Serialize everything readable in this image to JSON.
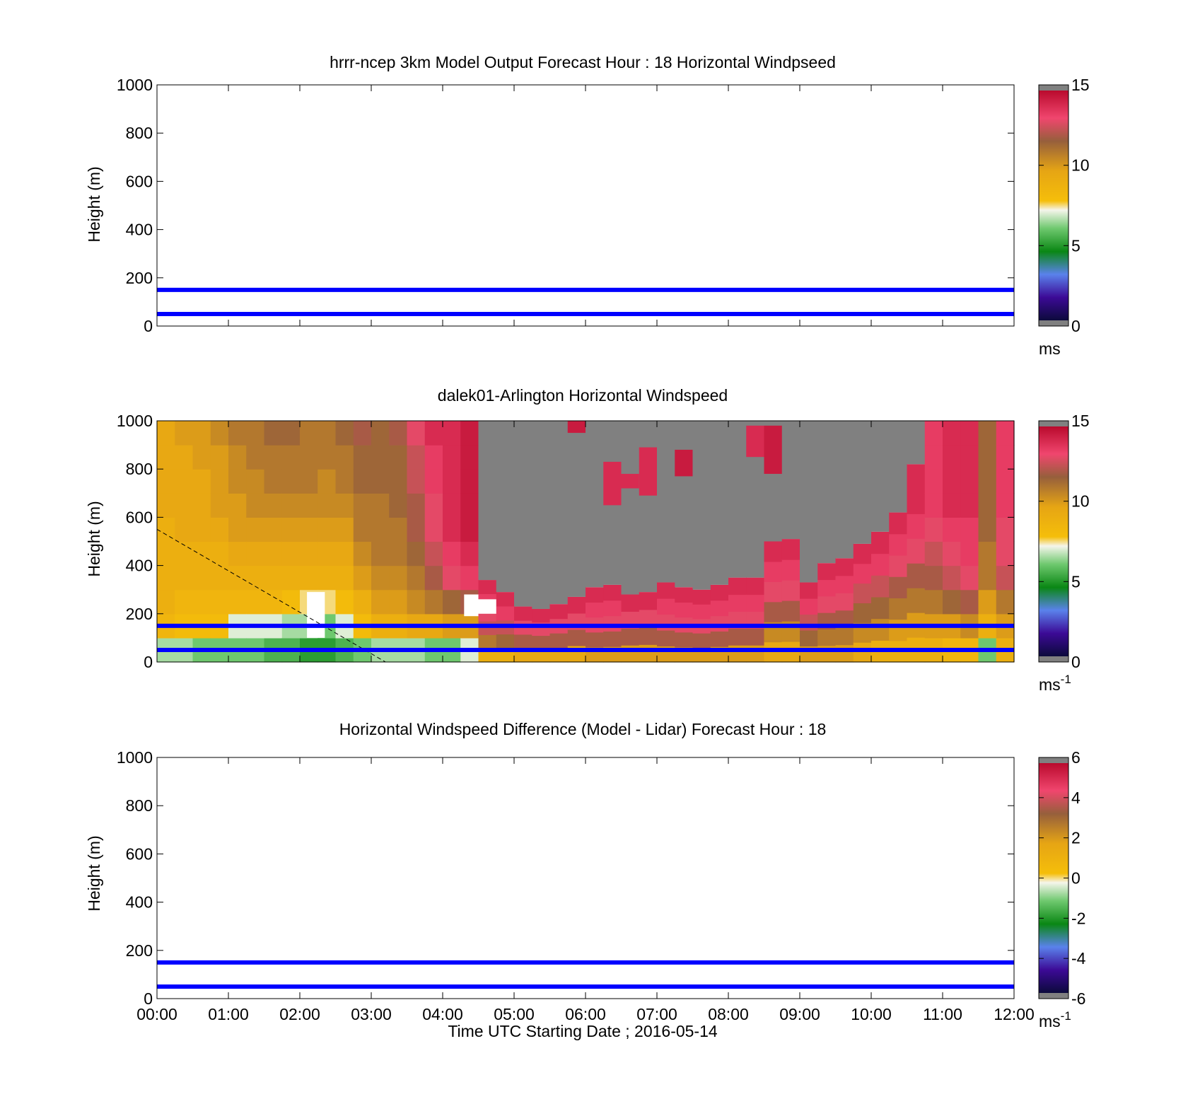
{
  "figure": {
    "xlabel": "Time UTC  Starting Date ; 2016-05-14"
  },
  "chart_data": [
    {
      "type": "heatmap",
      "title": "hrrr-ncep 3km Model Output   Forecast Hour : 18 Horizontal Windpseed",
      "ylabel": "Height (m)",
      "ylim": [
        0,
        1000
      ],
      "yticks": [
        "0",
        "200",
        "400",
        "600",
        "800",
        "1000"
      ],
      "xlim_hours": [
        0,
        12
      ],
      "xticks": [
        "00:00",
        "01:00",
        "02:00",
        "03:00",
        "04:00",
        "05:00",
        "06:00",
        "07:00",
        "08:00",
        "09:00",
        "10:00",
        "11:00",
        "12:00"
      ],
      "show_xticklabels": false,
      "colorbar": {
        "min": 0,
        "max": 15,
        "ticks": [
          "0",
          "5",
          "10",
          "15"
        ],
        "unit": "ms",
        "unit_sup": ""
      },
      "hlines_m": [
        50,
        150
      ],
      "hline_color": "#0000ff",
      "data": "empty"
    },
    {
      "type": "heatmap",
      "title": "dalek01-Arlington  Horizontal Windspeed",
      "ylabel": "Height (m)",
      "ylim": [
        0,
        1000
      ],
      "yticks": [
        "0",
        "200",
        "400",
        "600",
        "800",
        "1000"
      ],
      "xlim_hours": [
        0,
        12
      ],
      "xticks": [
        "00:00",
        "01:00",
        "02:00",
        "03:00",
        "04:00",
        "05:00",
        "06:00",
        "07:00",
        "08:00",
        "09:00",
        "10:00",
        "11:00",
        "12:00"
      ],
      "show_xticklabels": false,
      "colorbar": {
        "min": 0,
        "max": 15,
        "ticks": [
          "0",
          "5",
          "10",
          "15"
        ],
        "unit": "ms",
        "unit_sup": "-1"
      },
      "hlines_m": [
        50,
        150
      ],
      "hline_color": "#0000ff",
      "missing_color": "#808080",
      "dashed_line": {
        "from": [
          0,
          550
        ],
        "to": [
          3.2,
          0
        ]
      },
      "columns": [
        {
          "t": 0.0,
          "top_m": 1000,
          "speeds": [
            6.5,
            8.5,
            9,
            9,
            9,
            9,
            9.5,
            9.5,
            9.5,
            9.5
          ]
        },
        {
          "t": 0.25,
          "top_m": 1000,
          "speeds": [
            6.5,
            8,
            8.5,
            9,
            9,
            9.5,
            9.5,
            9.5,
            9.5,
            10
          ]
        },
        {
          "t": 0.5,
          "top_m": 1000,
          "speeds": [
            6,
            8,
            8.5,
            9,
            9,
            9.5,
            9.5,
            9.5,
            10,
            10
          ]
        },
        {
          "t": 0.75,
          "top_m": 1000,
          "speeds": [
            6,
            8,
            8.5,
            9,
            9,
            9.5,
            10,
            10,
            10,
            10.5
          ]
        },
        {
          "t": 1.0,
          "top_m": 1000,
          "speeds": [
            6,
            7,
            8.5,
            9,
            9.5,
            10,
            10,
            10.5,
            10.5,
            11
          ]
        },
        {
          "t": 1.25,
          "top_m": 1000,
          "speeds": [
            6,
            7,
            8.5,
            9,
            9.5,
            10,
            10.5,
            10.5,
            11,
            11
          ]
        },
        {
          "t": 1.5,
          "top_m": 1000,
          "speeds": [
            5.5,
            7,
            8.5,
            9,
            9.5,
            10,
            10.5,
            11,
            11,
            11.5
          ]
        },
        {
          "t": 1.75,
          "top_m": 1000,
          "speeds": [
            5.5,
            6.5,
            8,
            9,
            9.5,
            10,
            10.5,
            11,
            11,
            11.5
          ]
        },
        {
          "t": 2.0,
          "top_m": 1000,
          "speeds": [
            5,
            6.5,
            7.5,
            9,
            9.5,
            10,
            10.5,
            11,
            11,
            11
          ]
        },
        {
          "t": 2.25,
          "top_m": 1000,
          "speeds": [
            5,
            6,
            7.5,
            9,
            9.5,
            10,
            10.5,
            10.5,
            11,
            11
          ]
        },
        {
          "t": 2.5,
          "top_m": 1000,
          "speeds": [
            5.5,
            7,
            8,
            9,
            9.5,
            10,
            10.5,
            11,
            11,
            11.5
          ]
        },
        {
          "t": 2.75,
          "top_m": 1000,
          "speeds": [
            6,
            8,
            9,
            10,
            10.5,
            11,
            11,
            11.5,
            11.5,
            12
          ]
        },
        {
          "t": 3.0,
          "top_m": 1000,
          "speeds": [
            6.5,
            9,
            10,
            10.5,
            11,
            11,
            11,
            11.5,
            11.5,
            11.5
          ]
        },
        {
          "t": 3.25,
          "top_m": 1000,
          "speeds": [
            6.5,
            9,
            10,
            10.5,
            11,
            11,
            11.5,
            11.5,
            11.5,
            12
          ]
        },
        {
          "t": 3.5,
          "top_m": 1000,
          "speeds": [
            6.5,
            9.5,
            10.5,
            11,
            11.5,
            12,
            12,
            12.5,
            12.5,
            13
          ]
        },
        {
          "t": 3.75,
          "top_m": 1000,
          "speeds": [
            6,
            9.5,
            11,
            12,
            12.5,
            13,
            13,
            13.5,
            13.5,
            14
          ]
        },
        {
          "t": 4.0,
          "top_m": 1000,
          "speeds": [
            6,
            10,
            11.5,
            13,
            13.5,
            14,
            14,
            14,
            14,
            14
          ]
        },
        {
          "t": 4.25,
          "top_m": 1000,
          "speeds": [
            7,
            10,
            12,
            13.5,
            14,
            14.5,
            14.5,
            14.5,
            14.5,
            14.5
          ]
        },
        {
          "t": 4.5,
          "top_m": 340,
          "speeds": [
            9,
            11,
            12.5,
            13,
            13.5,
            14
          ]
        },
        {
          "t": 4.75,
          "top_m": 290,
          "speeds": [
            9,
            11.5,
            12.5,
            13.5,
            14
          ]
        },
        {
          "t": 5.0,
          "top_m": 230,
          "speeds": [
            9.5,
            12,
            13,
            14
          ]
        },
        {
          "t": 5.25,
          "top_m": 220,
          "speeds": [
            9.5,
            12,
            13,
            14
          ]
        },
        {
          "t": 5.5,
          "top_m": 240,
          "speeds": [
            9.5,
            12,
            13,
            14
          ]
        },
        {
          "t": 5.75,
          "top_m": 270,
          "speeds": [
            9.5,
            12,
            13,
            14
          ]
        },
        {
          "t": 6.0,
          "top_m": 310,
          "speeds": [
            10,
            12,
            13,
            13.5,
            14
          ]
        },
        {
          "t": 6.25,
          "top_m": 320,
          "speeds": [
            10,
            12,
            13,
            13.5,
            14
          ]
        },
        {
          "t": 6.5,
          "top_m": 280,
          "speeds": [
            10,
            12,
            13,
            14
          ]
        },
        {
          "t": 6.75,
          "top_m": 290,
          "speeds": [
            10,
            12,
            13,
            14
          ]
        },
        {
          "t": 7.0,
          "top_m": 330,
          "speeds": [
            10,
            12,
            13,
            13.5,
            14
          ]
        },
        {
          "t": 7.25,
          "top_m": 310,
          "speeds": [
            10,
            12,
            13,
            13.5,
            14
          ]
        },
        {
          "t": 7.5,
          "top_m": 300,
          "speeds": [
            10,
            12,
            13,
            13.5,
            14
          ]
        },
        {
          "t": 7.75,
          "top_m": 320,
          "speeds": [
            10,
            12,
            13,
            13.5,
            14
          ]
        },
        {
          "t": 8.0,
          "top_m": 350,
          "speeds": [
            10,
            12,
            13,
            13.5,
            14
          ]
        },
        {
          "t": 8.25,
          "top_m": 350,
          "speeds": [
            10,
            12,
            13,
            13.5,
            14
          ]
        },
        {
          "t": 8.5,
          "top_m": 500,
          "speeds": [
            9.5,
            10.5,
            12,
            13,
            13.5,
            14
          ]
        },
        {
          "t": 8.75,
          "top_m": 510,
          "speeds": [
            9.5,
            10.5,
            12,
            13,
            13.5,
            14
          ]
        },
        {
          "t": 9.0,
          "top_m": 330,
          "speeds": [
            10,
            11.5,
            12.5,
            13.5,
            14
          ]
        },
        {
          "t": 9.25,
          "top_m": 410,
          "speeds": [
            10,
            11,
            12,
            13,
            13.5,
            14
          ]
        },
        {
          "t": 9.5,
          "top_m": 430,
          "speeds": [
            10,
            11,
            12,
            13,
            13.5,
            14
          ]
        },
        {
          "t": 9.75,
          "top_m": 490,
          "speeds": [
            9.5,
            10.5,
            11.5,
            12.5,
            13.5,
            14
          ]
        },
        {
          "t": 10.0,
          "top_m": 540,
          "speeds": [
            9,
            10.5,
            11.5,
            12.5,
            13.5,
            14
          ]
        },
        {
          "t": 10.25,
          "top_m": 620,
          "speeds": [
            9,
            10,
            11,
            12,
            13,
            13.5,
            14
          ]
        },
        {
          "t": 10.5,
          "top_m": 820,
          "speeds": [
            9,
            10,
            11,
            12,
            13,
            13.5,
            14,
            14
          ]
        },
        {
          "t": 10.75,
          "top_m": 1000,
          "speeds": [
            9,
            10,
            11,
            12,
            12.5,
            13,
            13.5,
            13.5,
            13.5,
            13.5
          ]
        },
        {
          "t": 11.0,
          "top_m": 1000,
          "speeds": [
            8.5,
            10,
            11.5,
            12.5,
            13,
            13.5,
            14,
            14,
            14,
            14
          ]
        },
        {
          "t": 11.25,
          "top_m": 1000,
          "speeds": [
            8.5,
            10.5,
            12,
            13,
            13.5,
            13.5,
            14,
            14,
            14,
            14
          ]
        },
        {
          "t": 11.5,
          "top_m": 1000,
          "speeds": [
            6,
            9,
            10,
            11,
            11,
            11.5,
            11.5,
            11.5,
            11.5,
            11.5
          ]
        },
        {
          "t": 11.75,
          "top_m": 1000,
          "speeds": [
            9,
            10,
            11,
            12.5,
            13,
            13,
            13.5,
            13.5,
            13.5,
            13.5
          ]
        }
      ],
      "patches": [
        {
          "t0": 5.75,
          "t1": 6.0,
          "h0": 950,
          "h1": 1000,
          "v": 14.5
        },
        {
          "t0": 6.25,
          "t1": 6.5,
          "h0": 650,
          "h1": 830,
          "v": 14
        },
        {
          "t0": 6.5,
          "t1": 6.75,
          "h0": 720,
          "h1": 780,
          "v": 14
        },
        {
          "t0": 6.75,
          "t1": 7.0,
          "h0": 690,
          "h1": 890,
          "v": 14
        },
        {
          "t0": 7.25,
          "t1": 7.5,
          "h0": 770,
          "h1": 880,
          "v": 14.5
        },
        {
          "t0": 8.25,
          "t1": 8.5,
          "h0": 850,
          "h1": 980,
          "v": 14
        },
        {
          "t0": 8.5,
          "t1": 8.75,
          "h0": 780,
          "h1": 980,
          "v": 14.5
        }
      ],
      "white_patches": [
        {
          "t0": 2.1,
          "t1": 2.35,
          "h0": 100,
          "h1": 290
        },
        {
          "t0": 4.3,
          "t1": 4.5,
          "h0": 190,
          "h1": 280
        },
        {
          "t0": 4.5,
          "t1": 4.75,
          "h0": 200,
          "h1": 260
        }
      ]
    },
    {
      "type": "heatmap",
      "title": "Horizontal Windspeed Difference (Model - Lidar) Forecast Hour : 18",
      "ylabel": "Height (m)",
      "ylim": [
        0,
        1000
      ],
      "yticks": [
        "0",
        "200",
        "400",
        "600",
        "800",
        "1000"
      ],
      "xlim_hours": [
        0,
        12
      ],
      "xticks": [
        "00:00",
        "01:00",
        "02:00",
        "03:00",
        "04:00",
        "05:00",
        "06:00",
        "07:00",
        "08:00",
        "09:00",
        "10:00",
        "11:00",
        "12:00"
      ],
      "show_xticklabels": true,
      "colorbar": {
        "min": -6,
        "max": 6,
        "ticks": [
          "-6",
          "-4",
          "-2",
          "0",
          "2",
          "4",
          "6"
        ],
        "unit": "ms",
        "unit_sup": "-1"
      },
      "hlines_m": [
        50,
        150
      ],
      "hline_color": "#0000ff",
      "data": "empty"
    }
  ]
}
